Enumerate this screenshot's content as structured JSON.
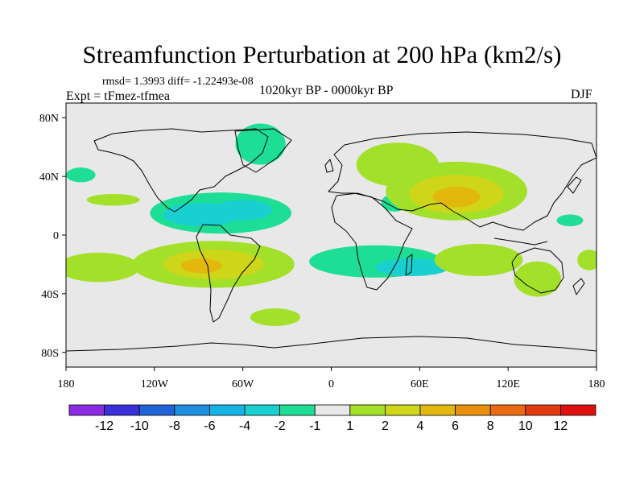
{
  "chart_data": {
    "type": "heatmap",
    "title": "Streamfunction Perturbation at 200 hPa (km2/s)",
    "stats": "rmsd= 1.3993 diff= -1.22493e-08",
    "experiment": "Expt = tFmez-tfmea",
    "period": "1020kyr BP - 0000kyr BP",
    "season": "DJF",
    "xlim": [
      -180,
      180
    ],
    "ylim": [
      -90,
      90
    ],
    "x_ticks": [
      {
        "value": -180,
        "label": "180"
      },
      {
        "value": -120,
        "label": "120W"
      },
      {
        "value": -60,
        "label": "60W"
      },
      {
        "value": 0,
        "label": "0"
      },
      {
        "value": 60,
        "label": "60E"
      },
      {
        "value": 120,
        "label": "120E"
      },
      {
        "value": 180,
        "label": "180"
      }
    ],
    "y_ticks": [
      {
        "value": 80,
        "label": "80N"
      },
      {
        "value": 40,
        "label": "40N"
      },
      {
        "value": 0,
        "label": "0"
      },
      {
        "value": -40,
        "label": "40S"
      },
      {
        "value": -80,
        "label": "80S"
      }
    ],
    "colorbar": {
      "levels": [
        -12,
        -10,
        -8,
        -6,
        -4,
        -2,
        -1,
        1,
        2,
        4,
        6,
        8,
        10,
        12
      ],
      "labels": [
        "-12",
        "-10",
        "-8",
        "-6",
        "-4",
        "-2",
        "-1",
        "1",
        "2",
        "4",
        "6",
        "8",
        "10",
        "12"
      ],
      "colors": [
        "#8b2be2",
        "#3b2fd9",
        "#1f63d6",
        "#1e8fe0",
        "#14b3e3",
        "#19cfd0",
        "#1ede95",
        "#e8e8e8",
        "#a3e02a",
        "#cfd61a",
        "#e2b80e",
        "#e8900c",
        "#e96a12",
        "#e23a10",
        "#df0f0f"
      ]
    },
    "map": {
      "background": "#e8e8e8",
      "anomalies": [
        {
          "lon": -75,
          "lat": 15,
          "rlon": 48,
          "rlat": 14,
          "value": -1.5
        },
        {
          "lon": -88,
          "lat": 14,
          "rlon": 26,
          "rlat": 8,
          "value": -3
        },
        {
          "lon": -60,
          "lat": 17,
          "rlon": 20,
          "rlat": 7,
          "value": -3
        },
        {
          "lon": -48,
          "lat": 62,
          "rlon": 17,
          "rlat": 14,
          "value": -1.5
        },
        {
          "lon": -170,
          "lat": 41,
          "rlon": 10,
          "rlat": 5,
          "value": -1.5
        },
        {
          "lon": 43,
          "lat": 22,
          "rlon": 9,
          "rlat": 6,
          "value": -1.5
        },
        {
          "lon": 162,
          "lat": 10,
          "rlon": 9,
          "rlat": 4,
          "value": -1.5
        },
        {
          "lon": -148,
          "lat": 24,
          "rlon": 18,
          "rlat": 4,
          "value": 1.5
        },
        {
          "lon": -80,
          "lat": -20,
          "rlon": 55,
          "rlat": 16,
          "value": 1.5
        },
        {
          "lon": -80,
          "lat": -20,
          "rlon": 34,
          "rlat": 10,
          "value": 3
        },
        {
          "lon": -88,
          "lat": -21,
          "rlon": 14,
          "rlat": 5,
          "value": 5
        },
        {
          "lon": -158,
          "lat": -22,
          "rlon": 28,
          "rlat": 10,
          "value": 1.5
        },
        {
          "lon": -38,
          "lat": -56,
          "rlon": 17,
          "rlat": 6,
          "value": 1.5
        },
        {
          "lon": 45,
          "lat": 48,
          "rlon": 28,
          "rlat": 15,
          "value": 1.5
        },
        {
          "lon": 85,
          "lat": 30,
          "rlon": 48,
          "rlat": 20,
          "value": 1.5
        },
        {
          "lon": 85,
          "lat": 28,
          "rlon": 32,
          "rlat": 13,
          "value": 3
        },
        {
          "lon": 85,
          "lat": 26,
          "rlon": 16,
          "rlat": 7,
          "value": 5
        },
        {
          "lon": 30,
          "lat": -18,
          "rlon": 45,
          "rlat": 11,
          "value": -1.5
        },
        {
          "lon": 55,
          "lat": -22,
          "rlon": 25,
          "rlat": 6,
          "value": -3
        },
        {
          "lon": 100,
          "lat": -17,
          "rlon": 30,
          "rlat": 11,
          "value": 1.5
        },
        {
          "lon": 140,
          "lat": -30,
          "rlon": 16,
          "rlat": 12,
          "value": 1.5
        },
        {
          "lon": 175,
          "lat": -17,
          "rlon": 8,
          "rlat": 7,
          "value": 1.5
        }
      ]
    }
  }
}
